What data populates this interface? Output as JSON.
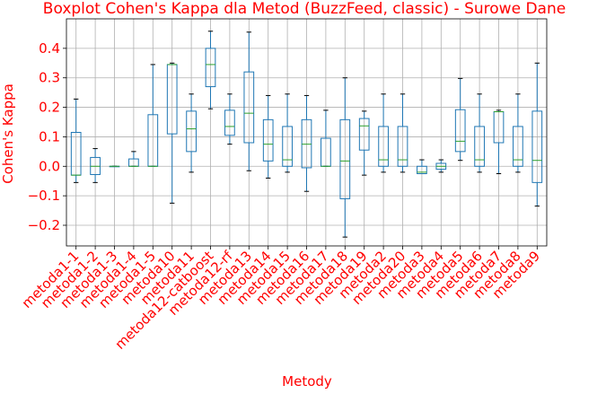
{
  "chart_data": {
    "type": "boxplot",
    "title": "Boxplot Cohen's Kappa dla Metod (BuzzFeed, classic) - Surowe Dane",
    "xlabel": "Metody",
    "ylabel": "Cohen's Kappa",
    "ylim": [
      -0.27,
      0.5
    ],
    "yticks": [
      -0.2,
      -0.1,
      0.0,
      0.1,
      0.2,
      0.3,
      0.4
    ],
    "ytick_labels": [
      "−0.2",
      "−0.1",
      "0.0",
      "0.1",
      "0.2",
      "0.3",
      "0.4"
    ],
    "grid": true,
    "categories": [
      "metoda1-1",
      "metoda1-2",
      "metoda1-3",
      "metoda1-4",
      "metoda1-5",
      "metoda10",
      "metoda11",
      "metoda12-catboost",
      "metoda12-rf",
      "metoda13",
      "metoda14",
      "metoda15",
      "metoda16",
      "metoda17",
      "metoda18",
      "metoda19",
      "metoda2",
      "metoda20",
      "metoda3",
      "metoda4",
      "metoda5",
      "metoda6",
      "metoda7",
      "metoda8",
      "metoda9"
    ],
    "boxes": [
      {
        "whislo": -0.055,
        "q1": -0.03,
        "med": -0.03,
        "q3": 0.115,
        "whishi": 0.228
      },
      {
        "whislo": -0.055,
        "q1": -0.028,
        "med": 0.0,
        "q3": 0.03,
        "whishi": 0.06
      },
      {
        "whislo": 0.0,
        "q1": 0.0,
        "med": 0.0,
        "q3": 0.0,
        "whishi": 0.0
      },
      {
        "whislo": 0.0,
        "q1": 0.0,
        "med": 0.0,
        "q3": 0.025,
        "whishi": 0.05
      },
      {
        "whislo": 0.0,
        "q1": 0.0,
        "med": 0.0,
        "q3": 0.175,
        "whishi": 0.345
      },
      {
        "whislo": -0.125,
        "q1": 0.11,
        "med": 0.345,
        "q3": 0.345,
        "whishi": 0.35
      },
      {
        "whislo": -0.02,
        "q1": 0.05,
        "med": 0.127,
        "q3": 0.187,
        "whishi": 0.245
      },
      {
        "whislo": 0.195,
        "q1": 0.27,
        "med": 0.345,
        "q3": 0.4,
        "whishi": 0.458
      },
      {
        "whislo": 0.075,
        "q1": 0.105,
        "med": 0.135,
        "q3": 0.19,
        "whishi": 0.245
      },
      {
        "whislo": -0.015,
        "q1": 0.08,
        "med": 0.18,
        "q3": 0.32,
        "whishi": 0.455
      },
      {
        "whislo": -0.04,
        "q1": 0.018,
        "med": 0.075,
        "q3": 0.158,
        "whishi": 0.24
      },
      {
        "whislo": -0.02,
        "q1": 0.0,
        "med": 0.022,
        "q3": 0.135,
        "whishi": 0.245
      },
      {
        "whislo": -0.085,
        "q1": -0.005,
        "med": 0.075,
        "q3": 0.158,
        "whishi": 0.24
      },
      {
        "whislo": 0.0,
        "q1": 0.0,
        "med": 0.0,
        "q3": 0.095,
        "whishi": 0.19
      },
      {
        "whislo": -0.24,
        "q1": -0.11,
        "med": 0.018,
        "q3": 0.158,
        "whishi": 0.3
      },
      {
        "whislo": -0.03,
        "q1": 0.055,
        "med": 0.137,
        "q3": 0.162,
        "whishi": 0.187
      },
      {
        "whislo": -0.02,
        "q1": 0.0,
        "med": 0.022,
        "q3": 0.135,
        "whishi": 0.245
      },
      {
        "whislo": -0.02,
        "q1": 0.0,
        "med": 0.022,
        "q3": 0.135,
        "whishi": 0.245
      },
      {
        "whislo": -0.025,
        "q1": -0.025,
        "med": -0.02,
        "q3": 0.0,
        "whishi": 0.022
      },
      {
        "whislo": -0.02,
        "q1": -0.01,
        "med": 0.0,
        "q3": 0.01,
        "whishi": 0.022
      },
      {
        "whislo": 0.02,
        "q1": 0.05,
        "med": 0.085,
        "q3": 0.192,
        "whishi": 0.298
      },
      {
        "whislo": -0.02,
        "q1": 0.0,
        "med": 0.022,
        "q3": 0.135,
        "whishi": 0.245
      },
      {
        "whislo": -0.025,
        "q1": 0.08,
        "med": 0.185,
        "q3": 0.185,
        "whishi": 0.19
      },
      {
        "whislo": -0.02,
        "q1": 0.0,
        "med": 0.022,
        "q3": 0.135,
        "whishi": 0.245
      },
      {
        "whislo": -0.135,
        "q1": -0.055,
        "med": 0.02,
        "q3": 0.187,
        "whishi": 0.35
      }
    ],
    "colors": {
      "box": "#1f77b4",
      "median": "#2ca02c",
      "whisker": "#000000",
      "grid": "#b0b0b0",
      "label_text": "#ff0000",
      "axis": "#000000"
    }
  }
}
